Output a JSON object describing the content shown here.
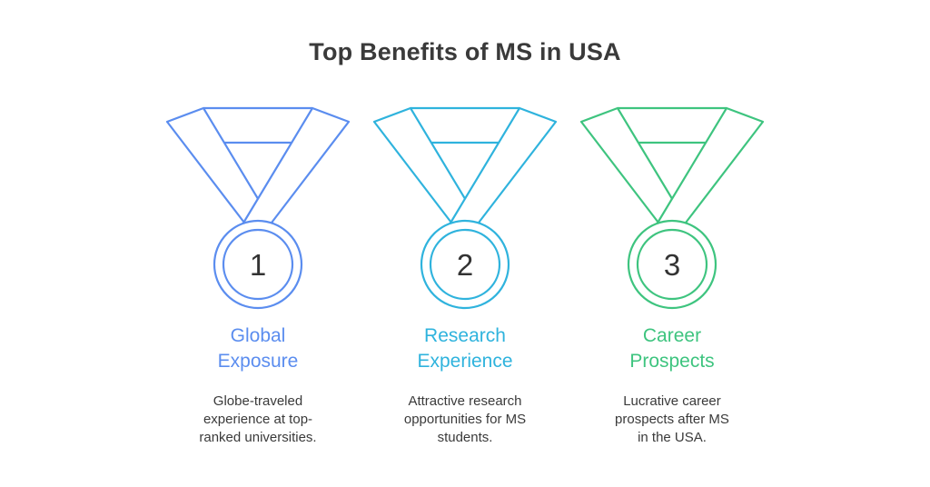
{
  "title": "Top Benefits of MS in USA",
  "colors": {
    "blue": "#5b8def",
    "cyan": "#2fb3dd",
    "green": "#3ec47f"
  },
  "items": [
    {
      "number": "1",
      "heading_line1": "Global",
      "heading_line2": "Exposure",
      "desc_line1": "Globe-traveled",
      "desc_line2": "experience at top-",
      "desc_line3": "ranked universities.",
      "icon": "medal-icon",
      "color": "#5b8def"
    },
    {
      "number": "2",
      "heading_line1": "Research",
      "heading_line2": "Experience",
      "desc_line1": "Attractive research",
      "desc_line2": "opportunities for MS",
      "desc_line3": "students.",
      "icon": "medal-icon",
      "color": "#2fb3dd"
    },
    {
      "number": "3",
      "heading_line1": "Career",
      "heading_line2": "Prospects",
      "desc_line1": "Lucrative career",
      "desc_line2": "prospects after MS",
      "desc_line3": "in the USA.",
      "icon": "medal-icon",
      "color": "#3ec47f"
    }
  ]
}
